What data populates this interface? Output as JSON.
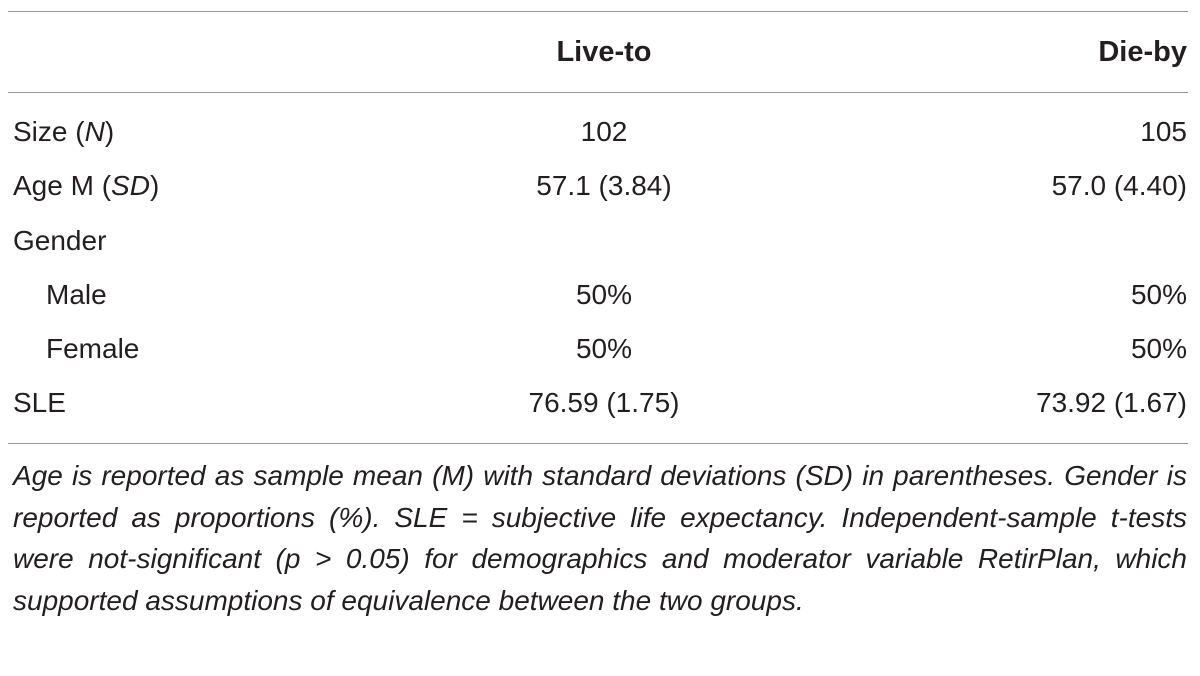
{
  "table": {
    "headers": {
      "label": "",
      "col1": "Live-to",
      "col2": "Die-by"
    },
    "rows": [
      {
        "label_main": "Size (",
        "label_ital": "N",
        "label_tail": ")",
        "col1": "102",
        "col2": "105"
      },
      {
        "label_main": "Age M (",
        "label_ital": "SD",
        "label_tail": ")",
        "col1": "57.1 (3.84)",
        "col2": "57.0 (4.40)"
      },
      {
        "label_main": "Gender",
        "label_ital": "",
        "label_tail": "",
        "col1": "",
        "col2": ""
      },
      {
        "label_main": "Male",
        "label_ital": "",
        "label_tail": "",
        "col1": "50%",
        "col2": "50%"
      },
      {
        "label_main": "Female",
        "label_ital": "",
        "label_tail": "",
        "col1": "50%",
        "col2": "50%"
      },
      {
        "label_main": "SLE",
        "label_ital": "",
        "label_tail": "",
        "col1": "76.59 (1.75)",
        "col2": "73.92 (1.67)"
      }
    ],
    "footnote": "Age is reported as sample mean (M) with standard deviations (SD) in parentheses. Gender is reported as proportions (%). SLE = subjective life expectancy. Independent-sample t-tests were not-significant (p > 0.05) for demographics and moderator variable RetirPlan, which supported assumptions of equivalence between the two groups."
  }
}
